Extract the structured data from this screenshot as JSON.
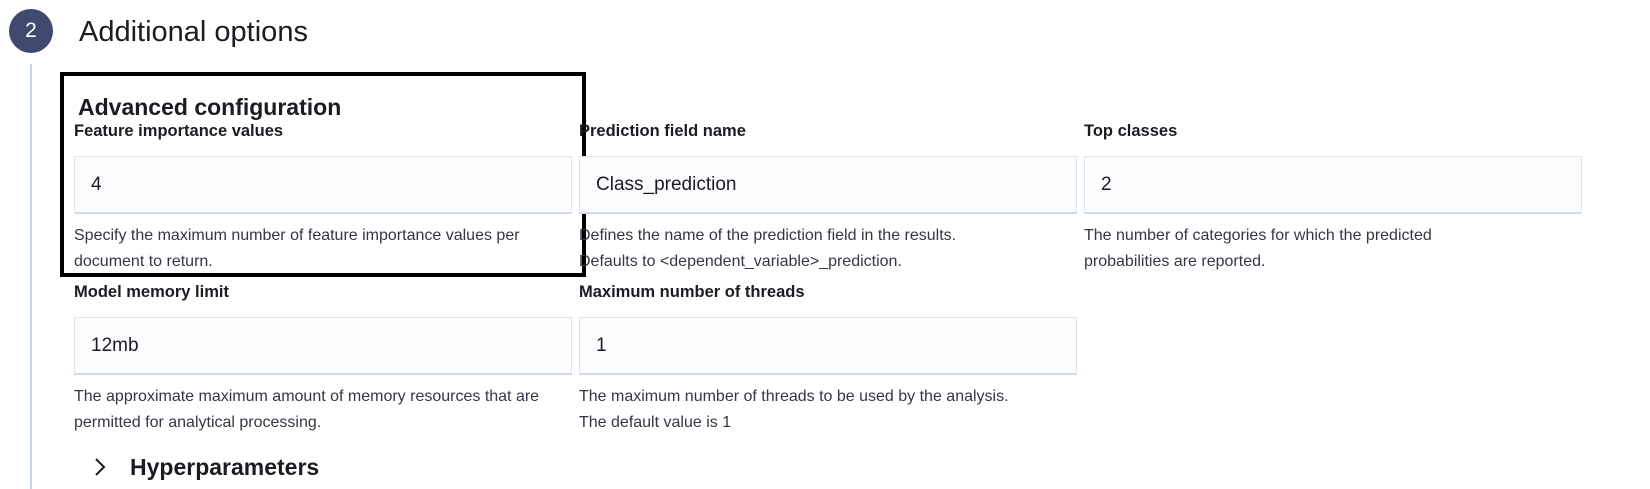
{
  "step": {
    "number": "2",
    "title": "Additional options"
  },
  "section": {
    "title": "Advanced configuration"
  },
  "fields": {
    "feature_importance": {
      "label": "Feature importance values",
      "value": "4",
      "help": "Specify the maximum number of feature importance values per document to return."
    },
    "prediction_field": {
      "label": "Prediction field name",
      "value": "Class_prediction",
      "help_line1": "Defines the name of the prediction field in the results.",
      "help_line2": "Defaults to <dependent_variable>_prediction."
    },
    "top_classes": {
      "label": "Top classes",
      "value": "2",
      "help": "The number of categories for which the predicted probabilities are reported."
    },
    "model_memory": {
      "label": "Model memory limit",
      "value": "12mb",
      "help": "The approximate maximum amount of memory resources that are permitted for analytical processing."
    },
    "max_threads": {
      "label": "Maximum number of threads",
      "value": "1",
      "help_line1": "The maximum number of threads to be used by the analysis.",
      "help_line2": "The default value is 1"
    }
  },
  "hyperparameters": {
    "label": "Hyperparameters",
    "icon": "chevron-right-icon"
  },
  "colors": {
    "badge": "#404a6e",
    "step_line": "#c5d4ea",
    "highlight_border": "#000000"
  }
}
